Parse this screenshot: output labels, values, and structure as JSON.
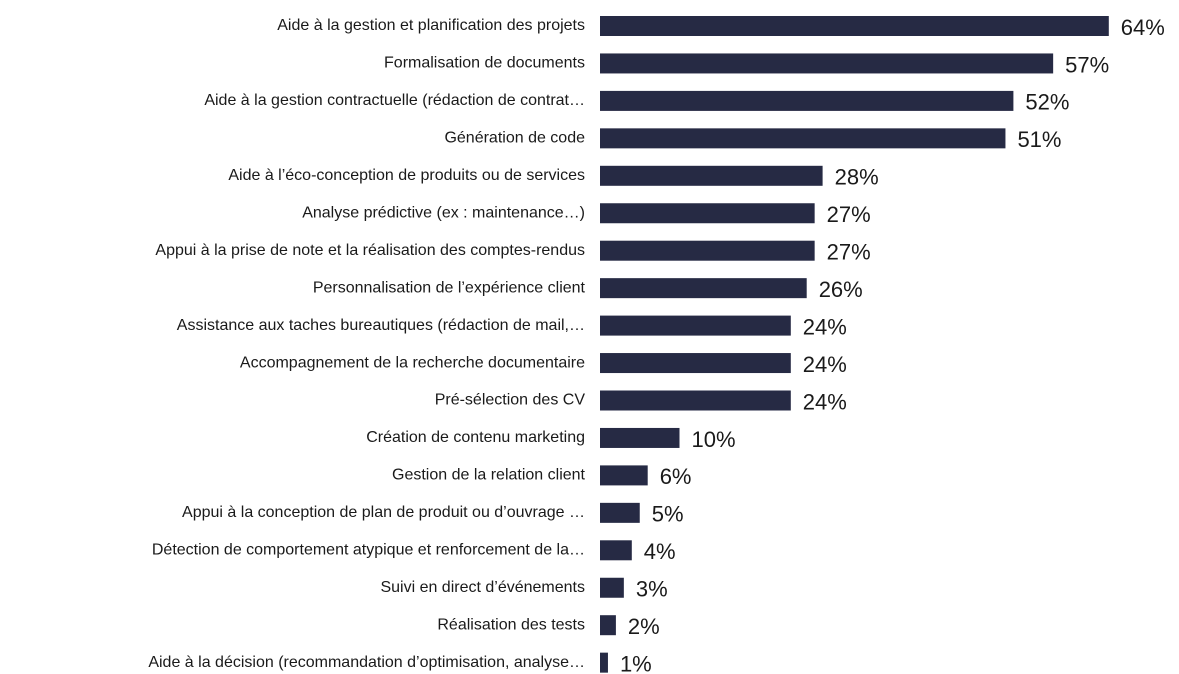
{
  "chart_data": {
    "type": "bar",
    "orientation": "horizontal",
    "color": "#262a44",
    "categories": [
      "Aide à la gestion et planification des projets",
      "Formalisation de documents",
      "Aide à la gestion contractuelle (rédaction de contrat…",
      "Génération de code",
      "Aide à l’éco-conception de produits ou de services",
      "Analyse prédictive (ex : maintenance…)",
      "Appui à la prise de note et la réalisation des comptes-rendus",
      "Personnalisation de l’expérience client",
      "Assistance aux taches bureautiques (rédaction de mail,…",
      "Accompagnement de la recherche documentaire",
      "Pré-sélection des CV",
      "Création de contenu marketing",
      "Gestion de la relation client",
      "Appui à la conception de plan de produit ou d’ouvrage …",
      "Détection de comportement atypique et renforcement de la…",
      "Suivi en direct d’événements",
      "Réalisation des tests",
      "Aide à la décision (recommandation d’optimisation, analyse…"
    ],
    "values": [
      64,
      57,
      52,
      51,
      28,
      27,
      27,
      26,
      24,
      24,
      24,
      10,
      6,
      5,
      4,
      3,
      2,
      1
    ],
    "value_labels": [
      "64%",
      "57%",
      "52%",
      "51%",
      "28%",
      "27%",
      "27%",
      "26%",
      "24%",
      "24%",
      "24%",
      "10%",
      "6%",
      "5%",
      "4%",
      "3%",
      "2%",
      "1%"
    ]
  }
}
